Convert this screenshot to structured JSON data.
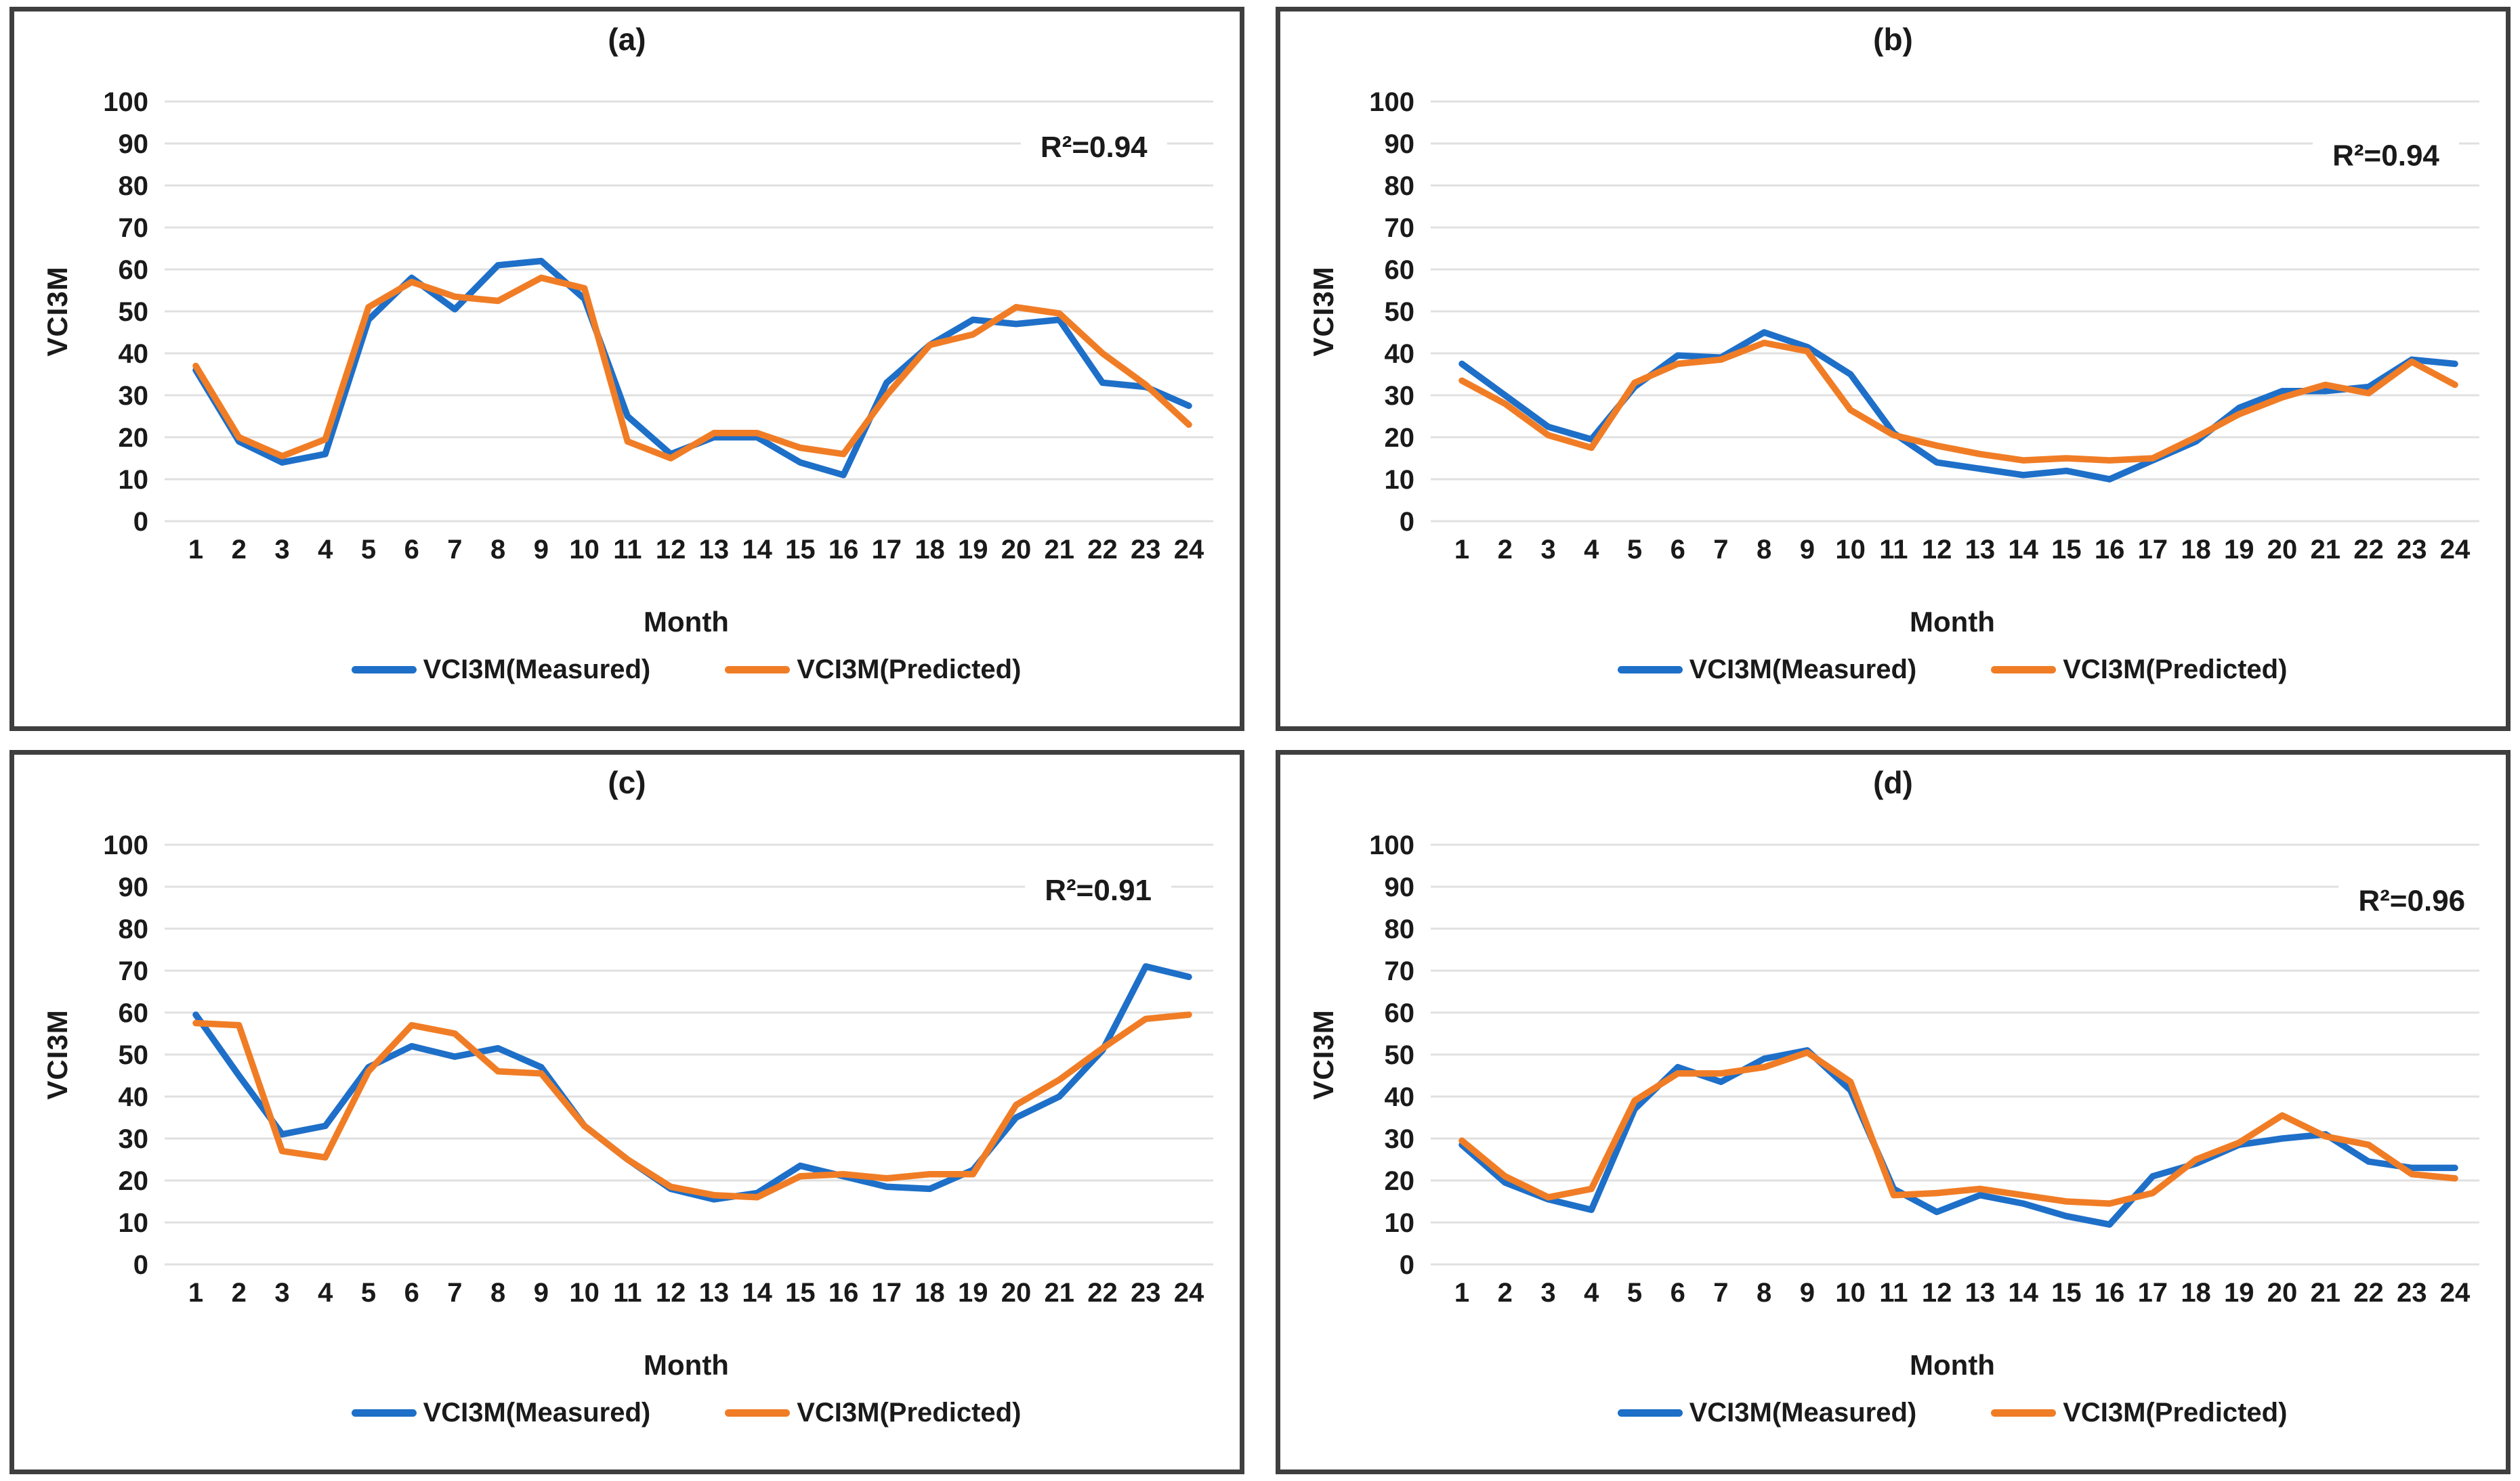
{
  "figure": {
    "colors": {
      "measured": "#1E6FC8",
      "predicted": "#F07D26",
      "gridline": "#E0E0E0",
      "text": "#1A1A1A",
      "panel_border": "#3F3F3F",
      "background": "#FFFFFF"
    },
    "legend": {
      "measured_label": "VCI3M(Measured)",
      "predicted_label": "VCI3M(Predicted)"
    }
  },
  "chart_data": [
    {
      "type": "line",
      "title": "(a)",
      "xlabel": "Month",
      "ylabel": "VCI3M",
      "ylim": [
        0,
        100
      ],
      "ytick_step": 10,
      "grid": "horizontal",
      "legend_position": "bottom",
      "annotation": {
        "text": "R²=0.94",
        "x": 21.8,
        "y": 89
      },
      "x": [
        1,
        2,
        3,
        4,
        5,
        6,
        7,
        8,
        9,
        10,
        11,
        12,
        13,
        14,
        15,
        16,
        17,
        18,
        19,
        20,
        21,
        22,
        23,
        24
      ],
      "series": [
        {
          "name": "VCI3M(Measured)",
          "values": [
            36,
            19,
            14,
            16,
            48,
            58,
            50.5,
            61,
            62,
            53,
            25,
            16,
            20,
            20,
            14,
            11,
            33,
            42,
            48,
            47,
            48,
            33,
            32,
            27.5
          ]
        },
        {
          "name": "VCI3M(Predicted)",
          "values": [
            37,
            20,
            15.5,
            19.5,
            51,
            57,
            53.5,
            52.5,
            58,
            55.5,
            19,
            15,
            21,
            21,
            17.5,
            16,
            30,
            42,
            44.5,
            51,
            49.5,
            40,
            32.5,
            23
          ]
        }
      ]
    },
    {
      "type": "line",
      "title": "(b)",
      "xlabel": "Month",
      "ylabel": "VCI3M",
      "ylim": [
        0,
        100
      ],
      "ytick_step": 10,
      "grid": "horizontal",
      "legend_position": "bottom",
      "annotation": {
        "text": "R²=0.94",
        "x": 22.4,
        "y": 87
      },
      "x": [
        1,
        2,
        3,
        4,
        5,
        6,
        7,
        8,
        9,
        10,
        11,
        12,
        13,
        14,
        15,
        16,
        17,
        18,
        19,
        20,
        21,
        22,
        23,
        24
      ],
      "series": [
        {
          "name": "VCI3M(Measured)",
          "values": [
            37.5,
            30,
            22.5,
            19.5,
            32,
            39.5,
            39,
            45,
            41.5,
            35,
            21,
            14,
            12.5,
            11,
            12,
            10,
            14.5,
            19,
            27,
            31,
            31,
            32,
            38.5,
            37.5
          ]
        },
        {
          "name": "VCI3M(Predicted)",
          "values": [
            33.5,
            28,
            20.5,
            17.5,
            33,
            37.5,
            38.5,
            42.5,
            40.5,
            26.5,
            20.5,
            18,
            16,
            14.5,
            15,
            14.5,
            15,
            20,
            25.5,
            29.5,
            32.5,
            30.5,
            38,
            32.5
          ]
        }
      ]
    },
    {
      "type": "line",
      "title": "(c)",
      "xlabel": "Month",
      "ylabel": "VCI3M",
      "ylim": [
        0,
        100
      ],
      "ytick_step": 10,
      "grid": "horizontal",
      "legend_position": "bottom",
      "annotation": {
        "text": "R²=0.91",
        "x": 21.9,
        "y": 89
      },
      "x": [
        1,
        2,
        3,
        4,
        5,
        6,
        7,
        8,
        9,
        10,
        11,
        12,
        13,
        14,
        15,
        16,
        17,
        18,
        19,
        20,
        21,
        22,
        23,
        24
      ],
      "series": [
        {
          "name": "VCI3M(Measured)",
          "values": [
            59.5,
            45,
            31,
            33,
            47,
            52,
            49.5,
            51.5,
            47,
            33,
            25,
            18,
            15.5,
            17,
            23.5,
            21,
            18.5,
            18,
            22.5,
            35,
            40,
            51,
            71,
            68.5
          ]
        },
        {
          "name": "VCI3M(Predicted)",
          "values": [
            57.5,
            57,
            27,
            25.5,
            46,
            57,
            55,
            46,
            45.5,
            33,
            25,
            18.5,
            16.5,
            16,
            21,
            21.5,
            20.5,
            21.5,
            21.5,
            38,
            44,
            51.5,
            58.5,
            59.5
          ]
        }
      ]
    },
    {
      "type": "line",
      "title": "(d)",
      "xlabel": "Month",
      "ylabel": "VCI3M",
      "ylim": [
        0,
        100
      ],
      "ytick_step": 10,
      "grid": "horizontal",
      "legend_position": "bottom",
      "annotation": {
        "text": "R²=0.96",
        "x": 23.0,
        "y": 86.5
      },
      "x": [
        1,
        2,
        3,
        4,
        5,
        6,
        7,
        8,
        9,
        10,
        11,
        12,
        13,
        14,
        15,
        16,
        17,
        18,
        19,
        20,
        21,
        22,
        23,
        24
      ],
      "series": [
        {
          "name": "VCI3M(Measured)",
          "values": [
            28.5,
            19.5,
            15.5,
            13,
            37,
            47,
            43.5,
            49,
            51,
            41.5,
            18,
            12.5,
            16.5,
            14.5,
            11.5,
            9.5,
            21,
            24,
            28.5,
            30,
            31,
            24.5,
            23,
            23
          ]
        },
        {
          "name": "VCI3M(Predicted)",
          "values": [
            29.5,
            21,
            16,
            18,
            39,
            45.5,
            45.5,
            47,
            50.5,
            43.5,
            16.5,
            17,
            18,
            16.5,
            15,
            14.5,
            17,
            25,
            29,
            35.5,
            30.5,
            28.5,
            21.5,
            20.5
          ]
        }
      ]
    }
  ]
}
